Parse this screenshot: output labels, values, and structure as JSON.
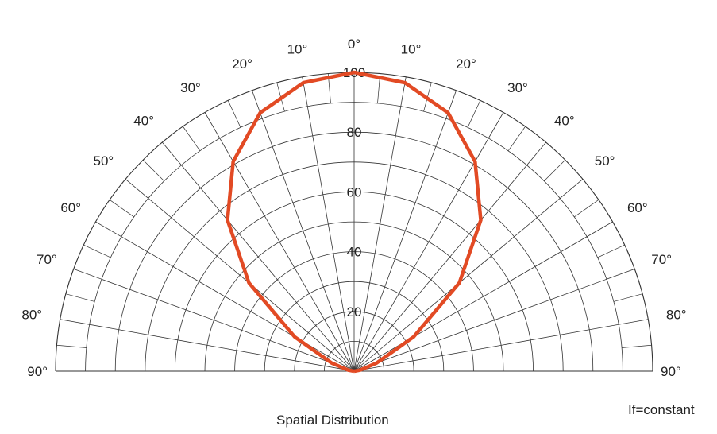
{
  "chart_data": {
    "type": "polar",
    "title": "Spatial Distribution",
    "note": "If=constant",
    "angle_ticks": [
      {
        "deg": -90,
        "label": "90°"
      },
      {
        "deg": -80,
        "label": "80°"
      },
      {
        "deg": -70,
        "label": "70°"
      },
      {
        "deg": -60,
        "label": "60°"
      },
      {
        "deg": -50,
        "label": "50°"
      },
      {
        "deg": -40,
        "label": "40°"
      },
      {
        "deg": -30,
        "label": "30°"
      },
      {
        "deg": -20,
        "label": "20°"
      },
      {
        "deg": -10,
        "label": "10°"
      },
      {
        "deg": 0,
        "label": "0°"
      },
      {
        "deg": 10,
        "label": "10°"
      },
      {
        "deg": 20,
        "label": "20°"
      },
      {
        "deg": 30,
        "label": "30°"
      },
      {
        "deg": 40,
        "label": "40°"
      },
      {
        "deg": 50,
        "label": "50°"
      },
      {
        "deg": 60,
        "label": "60°"
      },
      {
        "deg": 70,
        "label": "70°"
      },
      {
        "deg": 80,
        "label": "80°"
      },
      {
        "deg": 90,
        "label": "90°"
      }
    ],
    "radial_ticks": [
      {
        "value": 20,
        "label": "20"
      },
      {
        "value": 40,
        "label": "40"
      },
      {
        "value": 60,
        "label": "60"
      },
      {
        "value": 80,
        "label": "80"
      },
      {
        "value": 100,
        "label": "100"
      }
    ],
    "radial_range": [
      0,
      100
    ],
    "angle_range": [
      -90,
      90
    ],
    "grid": true,
    "series": [
      {
        "color": "#e24a24",
        "points": [
          {
            "deg": -90,
            "r": 0
          },
          {
            "deg": -80,
            "r": 2
          },
          {
            "deg": -70,
            "r": 8
          },
          {
            "deg": -60,
            "r": 23
          },
          {
            "deg": -50,
            "r": 46
          },
          {
            "deg": -40,
            "r": 66
          },
          {
            "deg": -30,
            "r": 81
          },
          {
            "deg": -20,
            "r": 92
          },
          {
            "deg": -10,
            "r": 98
          },
          {
            "deg": 0,
            "r": 100
          },
          {
            "deg": 10,
            "r": 98
          },
          {
            "deg": 20,
            "r": 92
          },
          {
            "deg": 30,
            "r": 81
          },
          {
            "deg": 40,
            "r": 66
          },
          {
            "deg": 50,
            "r": 46
          },
          {
            "deg": 60,
            "r": 23
          },
          {
            "deg": 70,
            "r": 8
          },
          {
            "deg": 80,
            "r": 2
          },
          {
            "deg": 90,
            "r": 0
          }
        ]
      }
    ]
  }
}
